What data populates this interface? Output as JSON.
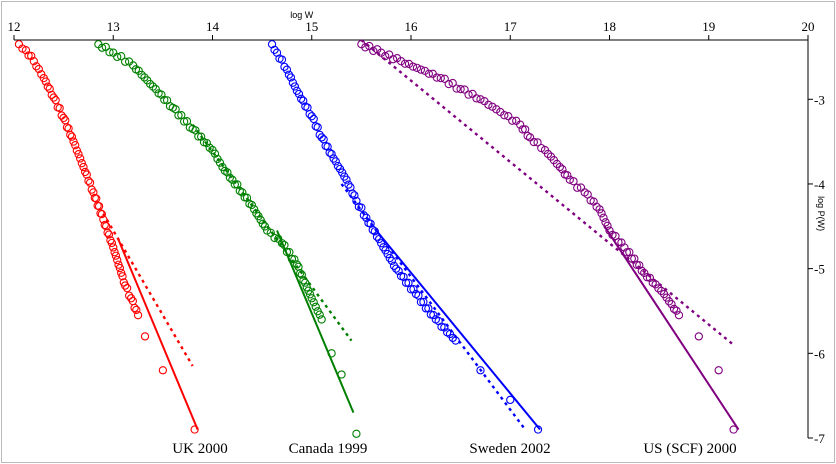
{
  "chart_data": {
    "type": "scatter",
    "xlabel": "log W",
    "ylabel": "log P(W)",
    "xlim": [
      12,
      20
    ],
    "ylim": [
      -7,
      -2.3
    ],
    "x_ticks": [
      12,
      13,
      14,
      15,
      16,
      17,
      18,
      19,
      20
    ],
    "y_ticks": [
      -3,
      -4,
      -5,
      -6,
      -7
    ],
    "grid": false,
    "x_axis_position": "top",
    "y_axis_position": "right",
    "series": [
      {
        "name": "UK 2000",
        "color": "#ff0000",
        "points": [
          [
            12.05,
            -2.35
          ],
          [
            12.12,
            -2.42
          ],
          [
            12.2,
            -2.55
          ],
          [
            12.3,
            -2.75
          ],
          [
            12.4,
            -2.98
          ],
          [
            12.5,
            -3.22
          ],
          [
            12.6,
            -3.5
          ],
          [
            12.7,
            -3.8
          ],
          [
            12.8,
            -4.1
          ],
          [
            12.9,
            -4.42
          ],
          [
            13.0,
            -4.75
          ],
          [
            13.08,
            -5.05
          ],
          [
            13.12,
            -5.2
          ],
          [
            13.18,
            -5.35
          ],
          [
            13.25,
            -5.55
          ],
          [
            13.32,
            -5.8
          ],
          [
            13.5,
            -6.2
          ],
          [
            13.82,
            -6.9
          ]
        ],
        "fit_dotted": [
          [
            12.9,
            -4.35
          ],
          [
            13.8,
            -6.15
          ]
        ],
        "fit_solid": [
          [
            13.05,
            -4.65
          ],
          [
            13.85,
            -6.9
          ]
        ]
      },
      {
        "name": "Canada 1999",
        "color": "#008000",
        "points": [
          [
            12.85,
            -2.35
          ],
          [
            13.0,
            -2.45
          ],
          [
            13.2,
            -2.6
          ],
          [
            13.4,
            -2.85
          ],
          [
            13.6,
            -3.1
          ],
          [
            13.8,
            -3.35
          ],
          [
            14.0,
            -3.6
          ],
          [
            14.1,
            -3.8
          ],
          [
            14.2,
            -3.95
          ],
          [
            14.3,
            -4.1
          ],
          [
            14.42,
            -4.3
          ],
          [
            14.55,
            -4.55
          ],
          [
            14.7,
            -4.7
          ],
          [
            14.85,
            -4.95
          ],
          [
            15.0,
            -5.35
          ],
          [
            15.1,
            -5.6
          ],
          [
            15.2,
            -6.0
          ],
          [
            15.3,
            -6.25
          ],
          [
            15.45,
            -6.95
          ]
        ],
        "fit_dotted": [
          [
            13.8,
            -3.3
          ],
          [
            15.4,
            -5.85
          ]
        ],
        "fit_solid": [
          [
            14.65,
            -4.55
          ],
          [
            15.42,
            -6.7
          ]
        ]
      },
      {
        "name": "Sweden 2002",
        "color": "#0000ff",
        "points": [
          [
            14.6,
            -2.35
          ],
          [
            14.65,
            -2.45
          ],
          [
            14.75,
            -2.65
          ],
          [
            14.85,
            -2.9
          ],
          [
            15.0,
            -3.2
          ],
          [
            15.1,
            -3.45
          ],
          [
            15.22,
            -3.7
          ],
          [
            15.35,
            -3.95
          ],
          [
            15.45,
            -4.2
          ],
          [
            15.55,
            -4.4
          ],
          [
            15.7,
            -4.7
          ],
          [
            15.85,
            -5.0
          ],
          [
            16.05,
            -5.3
          ],
          [
            16.25,
            -5.6
          ],
          [
            16.45,
            -5.85
          ],
          [
            16.7,
            -6.2
          ],
          [
            17.0,
            -6.55
          ],
          [
            17.28,
            -6.9
          ]
        ],
        "fit_dotted": [
          [
            15.3,
            -4.0
          ],
          [
            17.15,
            -6.9
          ]
        ],
        "fit_solid": [
          [
            15.65,
            -4.55
          ],
          [
            17.3,
            -6.9
          ]
        ]
      },
      {
        "name": "US (SCF) 2000",
        "color": "#800080",
        "points": [
          [
            15.5,
            -2.35
          ],
          [
            15.7,
            -2.45
          ],
          [
            15.9,
            -2.55
          ],
          [
            16.1,
            -2.65
          ],
          [
            16.3,
            -2.75
          ],
          [
            16.5,
            -2.88
          ],
          [
            16.7,
            -3.0
          ],
          [
            16.9,
            -3.15
          ],
          [
            17.1,
            -3.3
          ],
          [
            17.2,
            -3.45
          ],
          [
            17.35,
            -3.6
          ],
          [
            17.5,
            -3.8
          ],
          [
            17.6,
            -3.95
          ],
          [
            17.75,
            -4.1
          ],
          [
            17.9,
            -4.3
          ],
          [
            18.0,
            -4.55
          ],
          [
            18.15,
            -4.75
          ],
          [
            18.35,
            -5.05
          ],
          [
            18.55,
            -5.3
          ],
          [
            18.7,
            -5.55
          ],
          [
            18.9,
            -5.8
          ],
          [
            19.1,
            -6.2
          ],
          [
            19.25,
            -6.9
          ]
        ],
        "fit_dotted": [
          [
            15.5,
            -2.3
          ],
          [
            19.25,
            -5.9
          ]
        ],
        "fit_solid": [
          [
            17.95,
            -4.5
          ],
          [
            19.3,
            -6.9
          ]
        ]
      }
    ],
    "annotations": [
      "UK 2000",
      "Canada 1999",
      "Sweden 2002",
      "US (SCF) 2000"
    ]
  }
}
